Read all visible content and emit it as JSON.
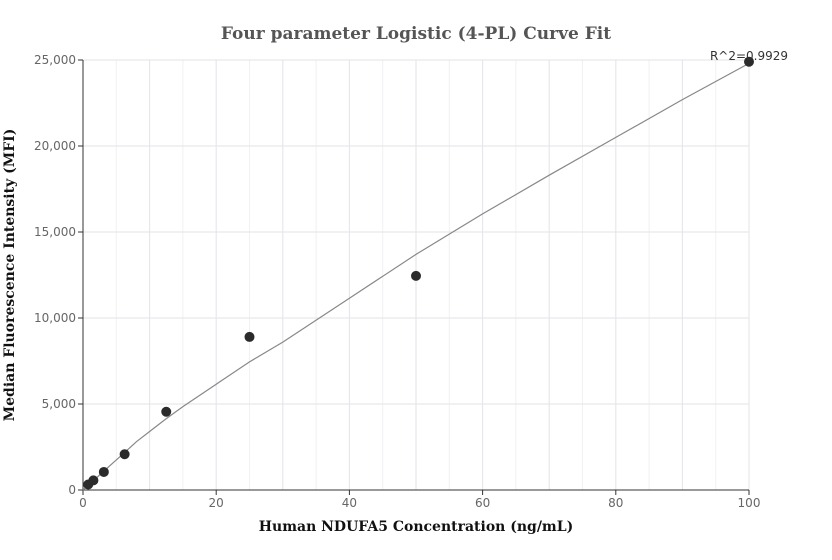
{
  "chart_data": {
    "type": "scatter",
    "title": "Four parameter Logistic (4-PL) Curve Fit",
    "xlabel": "Human NDUFA5 Concentration (ng/mL)",
    "ylabel": "Median Fluorescence Intensity (MFI)",
    "xlim": [
      0,
      100
    ],
    "ylim": [
      0,
      25000
    ],
    "xticks": [
      0,
      20,
      40,
      60,
      80,
      100
    ],
    "yticks": [
      0,
      5000,
      10000,
      15000,
      20000,
      25000
    ],
    "xtick_labels": [
      "0",
      "20",
      "40",
      "60",
      "80",
      "100"
    ],
    "ytick_labels": [
      "0",
      "5,000",
      "10,000",
      "15,000",
      "20,000",
      "25,000"
    ],
    "grid": true,
    "annotation": "R^2=0.9929",
    "points": {
      "x": [
        0.78,
        1.56,
        3.13,
        6.25,
        12.5,
        25,
        50,
        100
      ],
      "y": [
        320,
        560,
        1050,
        2080,
        4550,
        8900,
        12450,
        24900
      ]
    },
    "fit_curve": {
      "x": [
        0,
        1,
        2,
        4,
        6,
        8,
        10,
        12.5,
        15,
        20,
        25,
        30,
        40,
        50,
        60,
        70,
        80,
        90,
        100
      ],
      "y": [
        0,
        350,
        700,
        1400,
        2100,
        2800,
        3400,
        4150,
        4850,
        6150,
        7450,
        8600,
        11150,
        13700,
        16050,
        18300,
        20500,
        22700,
        24800
      ]
    },
    "colors": {
      "points": "#2b2b2b",
      "curve": "#888888"
    }
  }
}
